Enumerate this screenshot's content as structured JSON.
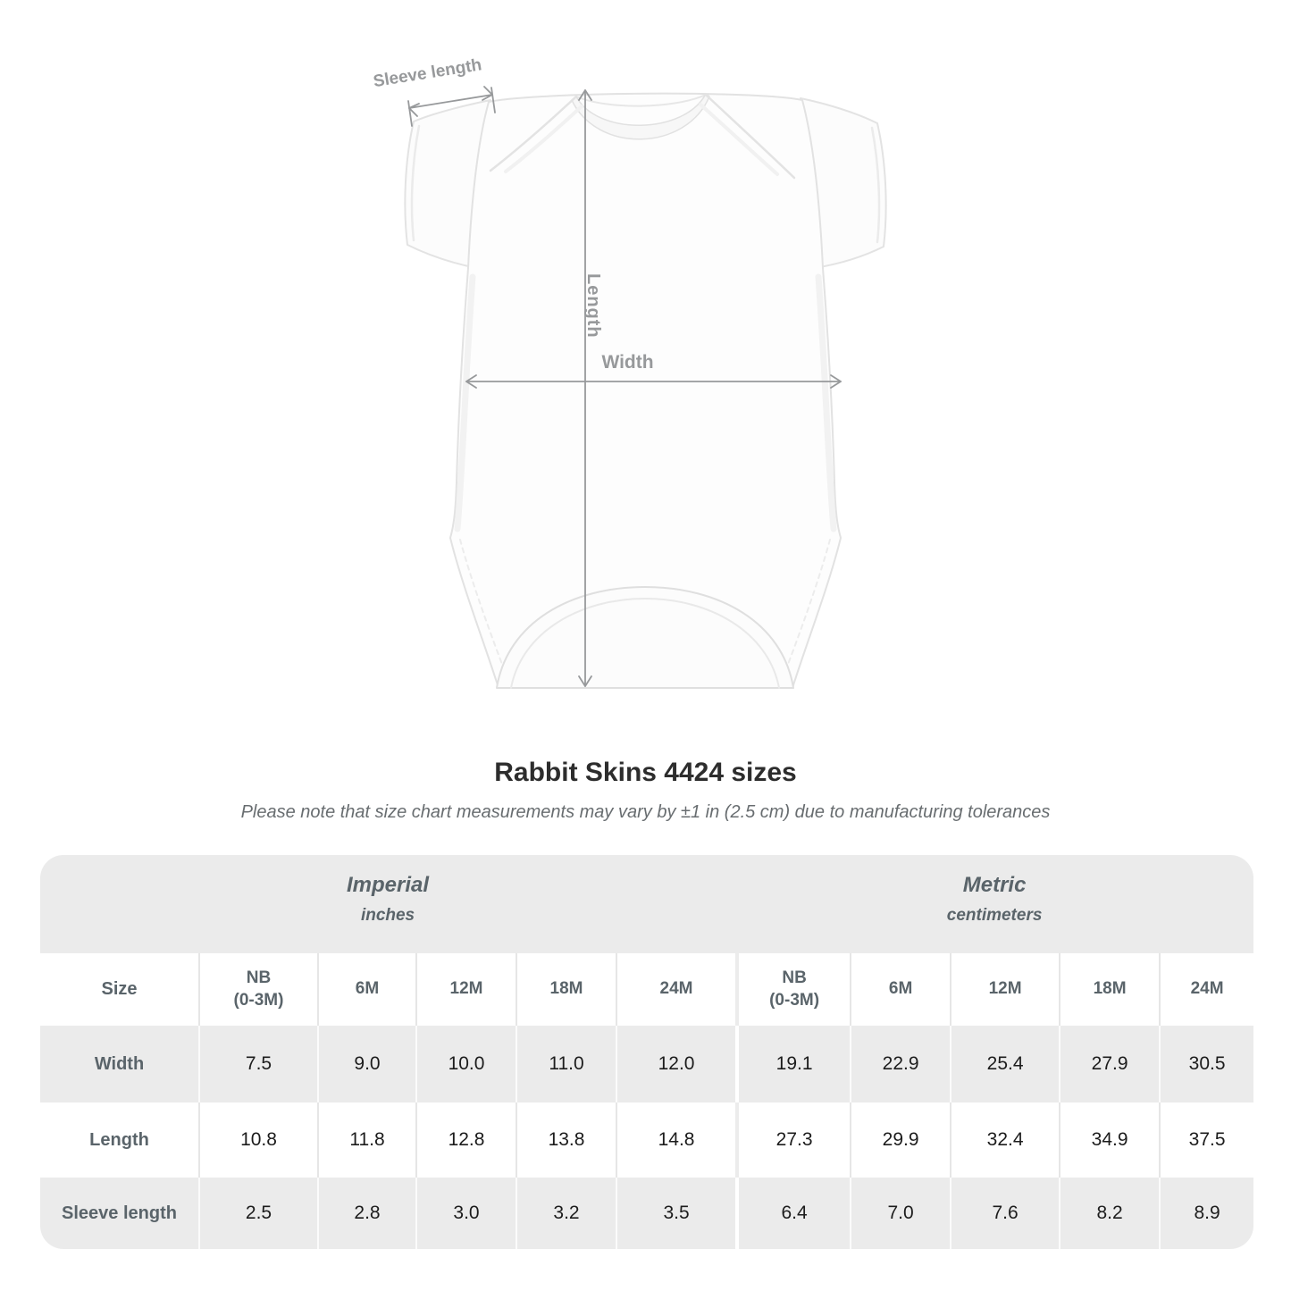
{
  "diagram": {
    "sleeve_length_label": "Sleeve length",
    "length_label": "Length",
    "width_label": "Width"
  },
  "title": "Rabbit Skins 4424 sizes",
  "subtitle": "Please note that size chart measurements may vary by ±1 in (2.5 cm) due to manufacturing tolerances",
  "table": {
    "unit_groups": [
      {
        "label": "Imperial",
        "sublabel": "inches"
      },
      {
        "label": "Metric",
        "sublabel": "centimeters"
      }
    ],
    "size_header": "Size",
    "column_headers": [
      "NB\n(0-3M)",
      "6M",
      "12M",
      "18M",
      "24M"
    ],
    "rows": [
      {
        "label": "Width",
        "imperial": [
          "7.5",
          "9.0",
          "10.0",
          "11.0",
          "12.0"
        ],
        "metric": [
          "19.1",
          "22.9",
          "25.4",
          "27.9",
          "30.5"
        ]
      },
      {
        "label": "Length",
        "imperial": [
          "10.8",
          "11.8",
          "12.8",
          "13.8",
          "14.8"
        ],
        "metric": [
          "27.3",
          "29.9",
          "32.4",
          "34.9",
          "37.5"
        ]
      },
      {
        "label": "Sleeve length",
        "imperial": [
          "2.5",
          "2.8",
          "3.0",
          "3.2",
          "3.5"
        ],
        "metric": [
          "6.4",
          "7.0",
          "7.6",
          "8.2",
          "8.9"
        ]
      }
    ]
  },
  "colors": {
    "measurement_gray": "#97999b",
    "table_band_gray": "#ebebeb",
    "header_text_gray": "#5a646a",
    "title_dark": "#2d2d2d",
    "value_dark": "#1c1c1c",
    "garment_outline": "#e2e2e2"
  }
}
